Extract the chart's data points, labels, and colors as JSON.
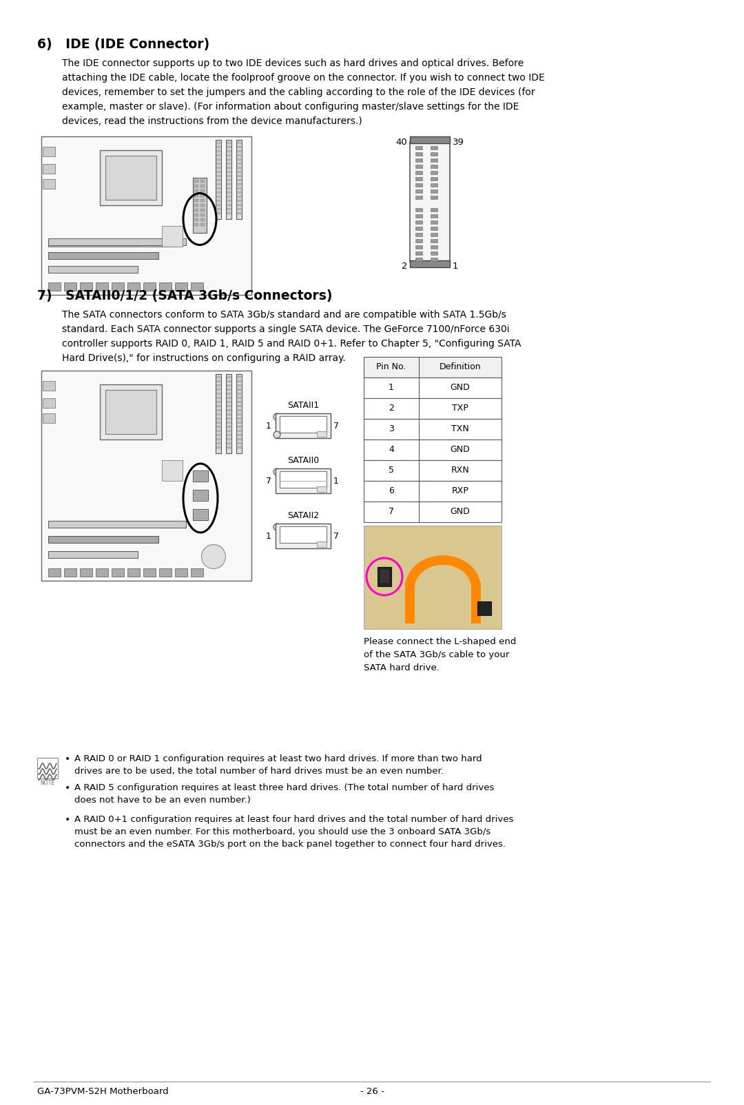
{
  "bg_color": "#ffffff",
  "text_color": "#000000",
  "section6_title": "6)   IDE (IDE Connector)",
  "section6_body1": "The IDE connector supports up to two IDE devices such as hard drives and optical drives. Before",
  "section6_body2": "attaching the IDE cable, locate the foolproof groove on the connector. If you wish to connect two IDE",
  "section6_body3": "devices, remember to set the jumpers and the cabling according to the role of the IDE devices (for",
  "section6_body4": "example, master or slave). (For information about configuring master/slave settings for the IDE",
  "section6_body5": "devices, read the instructions from the device manufacturers.)",
  "section7_title": "7)   SATAII0/1/2 (SATA 3Gb/s Connectors)",
  "section7_body1": "The SATA connectors conform to SATA 3Gb/s standard and are compatible with SATA 1.5Gb/s",
  "section7_body2": "standard. Each SATA connector supports a single SATA device. The GeForce 7100/nForce 630i",
  "section7_body3": "controller supports RAID 0, RAID 1, RAID 5 and RAID 0+1. Refer to Chapter 5, \"Configuring SATA",
  "section7_body4": "Hard Drive(s),\" for instructions on configuring a RAID array.",
  "sata_table_headers": [
    "Pin No.",
    "Definition"
  ],
  "sata_table_rows": [
    [
      "1",
      "GND"
    ],
    [
      "2",
      "TXP"
    ],
    [
      "3",
      "TXN"
    ],
    [
      "4",
      "GND"
    ],
    [
      "5",
      "RXN"
    ],
    [
      "6",
      "RXP"
    ],
    [
      "7",
      "GND"
    ]
  ],
  "note_bullets": [
    "A RAID 0 or RAID 1 configuration requires at least two hard drives. If more than two hard drives are to be used, the total number of hard drives must be an even number.",
    "A RAID 5 configuration requires at least three hard drives. (The total number of hard drives does not have to be an even number.)",
    "A RAID 0+1 configuration requires at least four hard drives and the total number of hard drives must be an even number. For this motherboard, you should use the 3 onboard SATA 3Gb/s connectors and the eSATA 3Gb/s port on the back panel together to connect four hard drives."
  ],
  "photo_caption": "Please connect the L-shaped end\nof the SATA 3Gb/s cable to your\nSATA hard drive.",
  "footer_left": "GA-73PVM-S2H Motherboard",
  "footer_center": "- 26 -"
}
